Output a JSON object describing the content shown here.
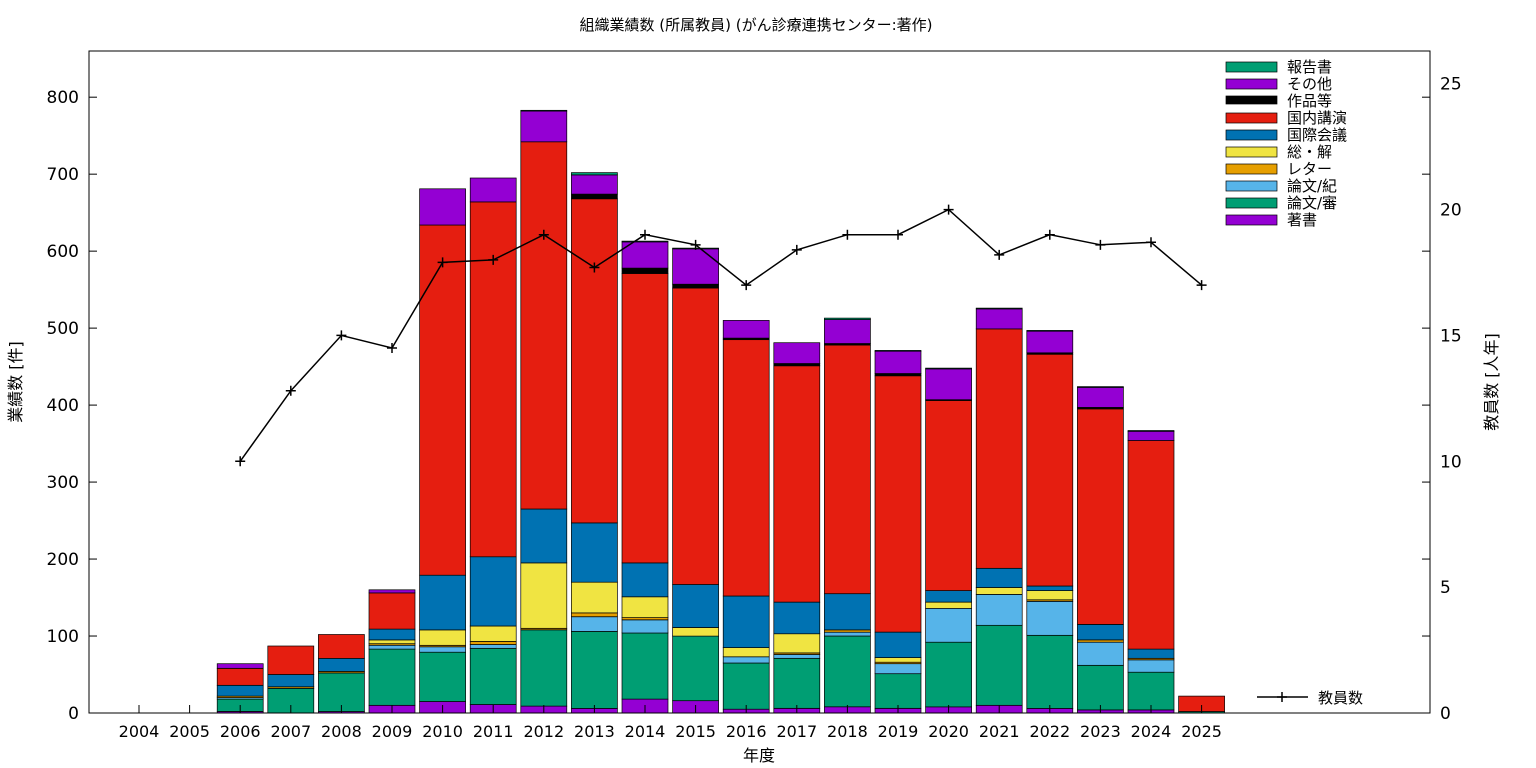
{
  "chart_data": {
    "type": "bar",
    "stacked": true,
    "title": "組織業績数 (所属教員) (がん診療連携センター:著作)",
    "xlabel": "年度",
    "ylabel": "業績数 [件]",
    "y2label": "教員数 [人年]",
    "ylim": [
      0,
      860
    ],
    "y2lim": [
      0,
      26.3
    ],
    "yticks": [
      0,
      100,
      200,
      300,
      400,
      500,
      600,
      700,
      800
    ],
    "y2ticks": [
      0,
      5,
      10,
      15,
      20,
      25
    ],
    "grid": false,
    "legend_position": "top-right",
    "categories": [
      "2004",
      "2005",
      "2006",
      "2007",
      "2008",
      "2009",
      "2010",
      "2011",
      "2012",
      "2013",
      "2014",
      "2015",
      "2016",
      "2017",
      "2018",
      "2019",
      "2020",
      "2021",
      "2022",
      "2023",
      "2024",
      "2025"
    ],
    "series": [
      {
        "name": "著書",
        "color": "#9400d3",
        "values": [
          0,
          0,
          2,
          0,
          2,
          10,
          15,
          11,
          9,
          6,
          18,
          16,
          5,
          6,
          8,
          6,
          8,
          10,
          6,
          4,
          4,
          0
        ]
      },
      {
        "name": "論文/審",
        "color": "#009e73",
        "values": [
          0,
          0,
          16,
          32,
          50,
          73,
          64,
          73,
          99,
          100,
          86,
          84,
          60,
          65,
          92,
          45,
          84,
          104,
          95,
          58,
          49,
          2
        ]
      },
      {
        "name": "論文/紀",
        "color": "#56b4e9",
        "values": [
          0,
          0,
          2,
          0,
          0,
          5,
          7,
          5,
          0,
          19,
          17,
          0,
          8,
          5,
          5,
          13,
          44,
          40,
          44,
          30,
          16,
          0
        ]
      },
      {
        "name": "レター",
        "color": "#e69f00",
        "values": [
          0,
          0,
          2,
          2,
          2,
          2,
          2,
          4,
          2,
          5,
          3,
          0,
          0,
          2,
          3,
          2,
          0,
          0,
          2,
          3,
          2,
          0
        ]
      },
      {
        "name": "総・解",
        "color": "#f0e442",
        "values": [
          0,
          0,
          0,
          0,
          0,
          5,
          20,
          20,
          85,
          40,
          27,
          11,
          12,
          25,
          0,
          6,
          8,
          9,
          12,
          0,
          0,
          0
        ]
      },
      {
        "name": "国際会議",
        "color": "#0072b2",
        "values": [
          0,
          0,
          14,
          16,
          17,
          14,
          71,
          90,
          70,
          77,
          44,
          56,
          67,
          41,
          47,
          33,
          15,
          25,
          6,
          20,
          12,
          0
        ]
      },
      {
        "name": "国内講演",
        "color": "#e51e10",
        "values": [
          0,
          0,
          22,
          37,
          31,
          47,
          455,
          461,
          477,
          421,
          376,
          385,
          333,
          307,
          323,
          333,
          247,
          311,
          301,
          280,
          271,
          20
        ]
      },
      {
        "name": "作品等",
        "color": "#000000",
        "values": [
          0,
          0,
          0,
          0,
          0,
          0,
          0,
          0,
          0,
          6,
          7,
          5,
          2,
          3,
          2,
          3,
          1,
          0,
          2,
          2,
          0,
          0
        ]
      },
      {
        "name": "その他",
        "color": "#9400d3",
        "values": [
          0,
          0,
          6,
          0,
          0,
          4,
          47,
          31,
          40,
          25,
          34,
          46,
          23,
          27,
          31,
          29,
          40,
          26,
          28,
          26,
          12,
          0
        ]
      },
      {
        "name": "報告書",
        "color": "#009e73",
        "values": [
          0,
          0,
          0,
          0,
          0,
          0,
          0,
          0,
          1,
          3,
          1,
          1,
          0,
          0,
          2,
          1,
          1,
          1,
          1,
          1,
          1,
          0
        ]
      }
    ],
    "line_series": {
      "name": "教員数",
      "axis": "y2",
      "color": "#000000",
      "values": [
        null,
        null,
        10.0,
        12.8,
        15.0,
        14.5,
        17.9,
        18.0,
        19.0,
        17.7,
        19.0,
        18.6,
        17.0,
        18.4,
        19.0,
        19.0,
        20.0,
        18.2,
        19.0,
        18.6,
        18.7,
        17.0
      ]
    }
  }
}
